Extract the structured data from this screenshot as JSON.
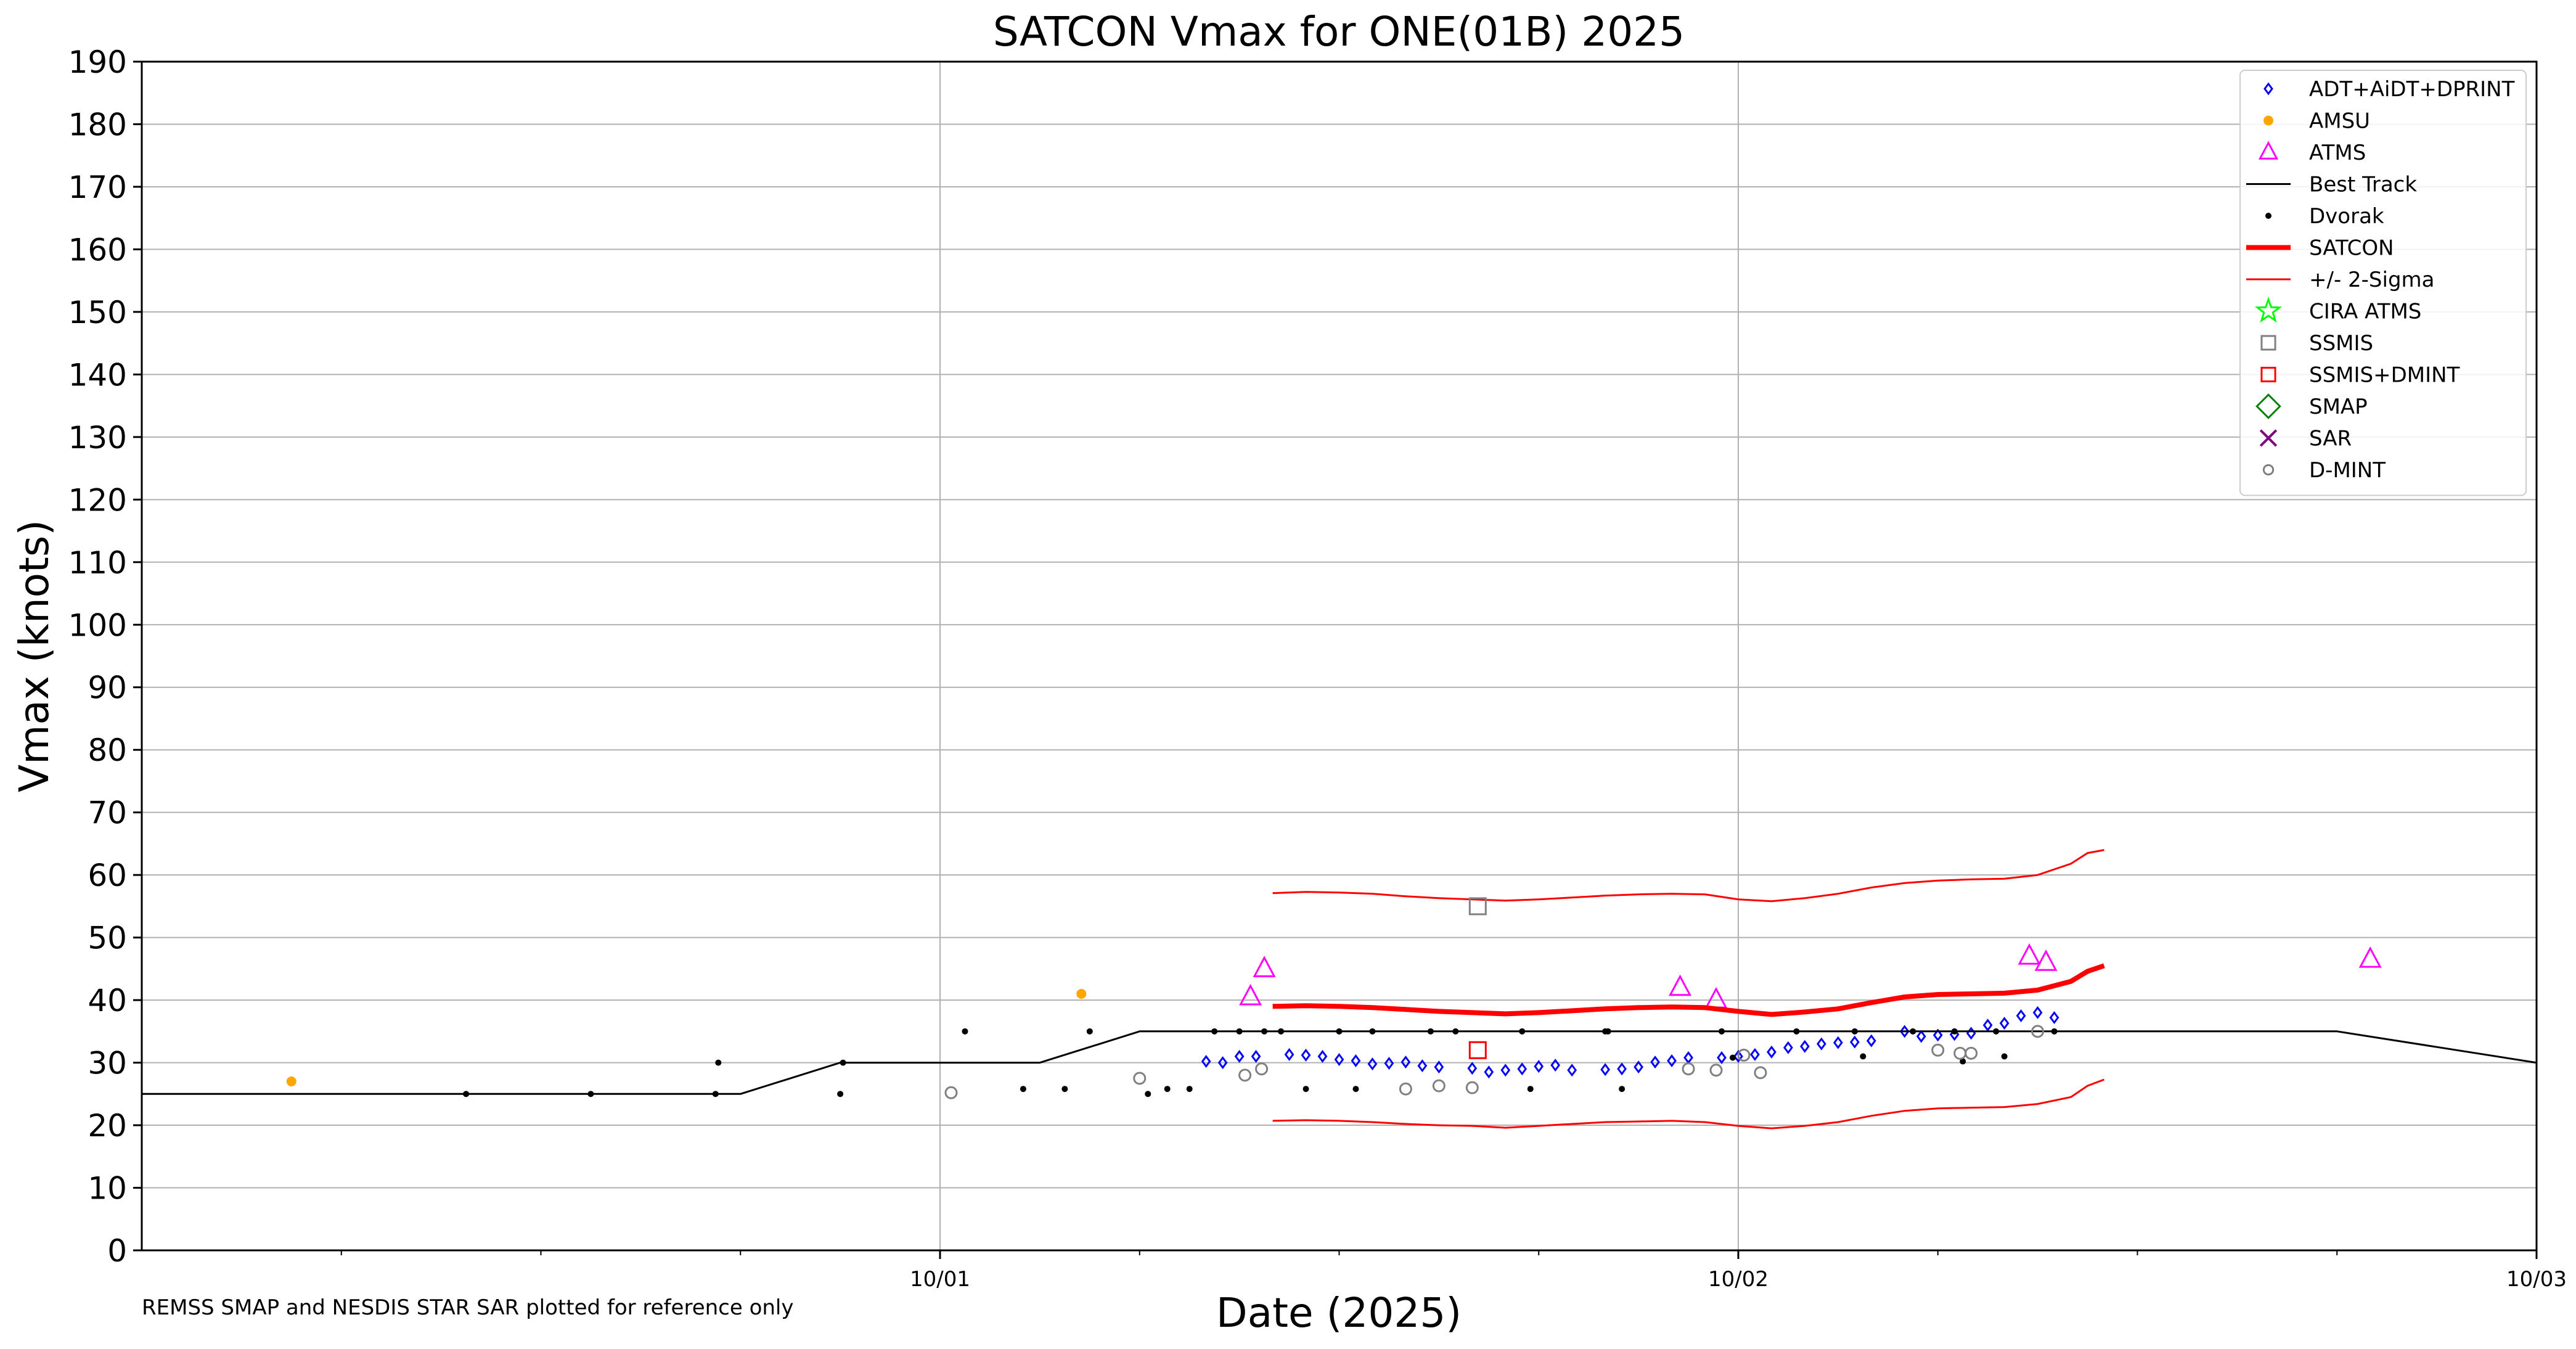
{
  "chart_data": {
    "type": "scatter",
    "title": "SATCON Vmax for ONE(01B) 2025",
    "xlabel": "Date (2025)",
    "ylabel": "Vmax (knots)",
    "footnote": "REMSS SMAP and NESDIS STAR SAR plotted for reference only",
    "xlim": [
      "2025-09-30T00:00",
      "2025-10-03T00:00"
    ],
    "ylim": [
      0,
      190
    ],
    "y_ticks": [
      0,
      10,
      20,
      30,
      40,
      50,
      60,
      70,
      80,
      90,
      100,
      110,
      120,
      130,
      140,
      150,
      160,
      170,
      180,
      190
    ],
    "x_ticks": [
      {
        "value": "2025-10-01T00:00",
        "label": "10/01"
      },
      {
        "value": "2025-10-02T00:00",
        "label": "10/02"
      },
      {
        "value": "2025-10-03T00:00",
        "label": "10/03"
      }
    ],
    "x_minor_ticks": [
      "2025-09-30T06:00",
      "2025-09-30T12:00",
      "2025-09-30T18:00",
      "2025-10-01T06:00",
      "2025-10-01T12:00",
      "2025-10-01T18:00",
      "2025-10-02T06:00",
      "2025-10-02T12:00",
      "2025-10-02T18:00"
    ],
    "grid": true,
    "legend_position": "top-right",
    "series": [
      {
        "name": "ADT+AiDT+DPRINT",
        "style": "open-diamond",
        "color": "#0000ff",
        "x": [
          "2025-10-01T08:00",
          "2025-10-01T08:30",
          "2025-10-01T09:00",
          "2025-10-01T09:30",
          "2025-10-01T10:30",
          "2025-10-01T11:00",
          "2025-10-01T11:30",
          "2025-10-01T12:00",
          "2025-10-01T12:30",
          "2025-10-01T13:00",
          "2025-10-01T13:30",
          "2025-10-01T14:00",
          "2025-10-01T14:30",
          "2025-10-01T15:00",
          "2025-10-01T16:00",
          "2025-10-01T16:30",
          "2025-10-01T17:00",
          "2025-10-01T17:30",
          "2025-10-01T18:00",
          "2025-10-01T18:30",
          "2025-10-01T19:00",
          "2025-10-01T20:00",
          "2025-10-01T20:30",
          "2025-10-01T21:00",
          "2025-10-01T21:30",
          "2025-10-01T22:00",
          "2025-10-01T22:30",
          "2025-10-01T23:30",
          "2025-10-02T00:00",
          "2025-10-02T00:30",
          "2025-10-02T01:00",
          "2025-10-02T01:30",
          "2025-10-02T02:00",
          "2025-10-02T02:30",
          "2025-10-02T03:00",
          "2025-10-02T03:30",
          "2025-10-02T04:00",
          "2025-10-02T05:00",
          "2025-10-02T05:30",
          "2025-10-02T06:00",
          "2025-10-02T06:30",
          "2025-10-02T07:00",
          "2025-10-02T07:30",
          "2025-10-02T08:00",
          "2025-10-02T08:30",
          "2025-10-02T09:00",
          "2025-10-02T09:30"
        ],
        "y": [
          30.2,
          30.0,
          31.0,
          31.0,
          31.3,
          31.2,
          31.0,
          30.5,
          30.3,
          29.8,
          29.9,
          30.1,
          29.5,
          29.3,
          29.1,
          28.5,
          28.8,
          29.0,
          29.4,
          29.6,
          28.8,
          28.9,
          29.0,
          29.3,
          30.1,
          30.3,
          30.8,
          30.8,
          31.0,
          31.3,
          31.7,
          32.4,
          32.6,
          33.0,
          33.2,
          33.3,
          33.5,
          35.0,
          34.2,
          34.4,
          34.5,
          34.7,
          36.0,
          36.3,
          37.5,
          38.0,
          37.2
        ]
      },
      {
        "name": "AMSU",
        "style": "filled-dot",
        "color": "#ffa500",
        "x": [
          "2025-09-30T04:30",
          "2025-10-01T04:15"
        ],
        "y": [
          27,
          41
        ]
      },
      {
        "name": "ATMS",
        "style": "open-triangle",
        "color": "#ff00ff",
        "x": [
          "2025-10-01T09:20",
          "2025-10-01T09:45",
          "2025-10-01T22:15",
          "2025-10-01T23:20",
          "2025-10-02T08:45",
          "2025-10-02T09:15",
          "2025-10-02T19:00"
        ],
        "y": [
          40.5,
          45,
          42,
          40,
          47,
          46,
          46.5
        ]
      },
      {
        "name": "Best Track",
        "style": "line",
        "color": "#000000",
        "x": [
          "2025-09-30T00:00",
          "2025-09-30T15:00",
          "2025-09-30T18:00",
          "2025-09-30T21:00",
          "2025-10-01T00:00",
          "2025-10-01T03:00",
          "2025-10-01T06:00",
          "2025-10-01T09:00",
          "2025-10-01T12:00",
          "2025-10-02T12:00",
          "2025-10-02T18:00",
          "2025-10-02T21:00",
          "2025-10-03T00:00"
        ],
        "y": [
          25,
          25,
          25,
          30,
          30,
          30,
          35,
          35,
          35,
          35,
          35,
          32.5,
          30
        ]
      },
      {
        "name": "Dvorak",
        "style": "small-dot",
        "color": "#000000",
        "x": [
          "2025-09-30T09:45",
          "2025-09-30T13:30",
          "2025-09-30T17:15",
          "2025-09-30T17:20",
          "2025-09-30T21:00",
          "2025-09-30T21:05",
          "2025-10-01T00:45",
          "2025-10-01T04:30",
          "2025-10-01T08:15",
          "2025-10-01T09:00",
          "2025-10-01T09:45",
          "2025-10-01T10:15",
          "2025-10-01T12:00",
          "2025-10-01T13:00",
          "2025-10-01T14:45",
          "2025-10-01T15:30",
          "2025-10-01T17:30",
          "2025-10-01T20:00",
          "2025-10-01T20:05",
          "2025-10-01T23:30",
          "2025-10-02T01:45",
          "2025-10-02T03:30",
          "2025-10-02T05:15",
          "2025-10-02T06:30",
          "2025-10-02T07:45",
          "2025-10-02T09:30",
          "2025-10-01T02:30",
          "2025-10-01T03:45",
          "2025-10-01T06:15",
          "2025-10-01T06:50",
          "2025-10-01T07:30",
          "2025-10-01T11:00",
          "2025-10-01T12:30",
          "2025-10-01T17:45",
          "2025-10-01T20:30",
          "2025-10-01T23:50",
          "2025-10-02T03:45",
          "2025-10-02T06:45",
          "2025-10-02T08:00"
        ],
        "y": [
          25,
          25,
          25,
          30,
          25,
          30,
          35,
          35,
          35,
          35,
          35,
          35,
          35,
          35,
          35,
          35,
          35,
          35,
          35,
          35,
          35,
          35,
          35,
          35,
          35,
          35,
          25.8,
          25.8,
          25,
          25.8,
          25.8,
          25.8,
          25.8,
          25.8,
          25.8,
          30.8,
          31,
          30.2,
          31
        ]
      },
      {
        "name": "SATCON",
        "style": "thick-line",
        "color": "#ff0000",
        "x": [
          "2025-10-01T10:00",
          "2025-10-01T11:00",
          "2025-10-01T12:00",
          "2025-10-01T13:00",
          "2025-10-01T14:00",
          "2025-10-01T15:00",
          "2025-10-01T16:00",
          "2025-10-01T17:00",
          "2025-10-01T18:00",
          "2025-10-01T19:00",
          "2025-10-01T20:00",
          "2025-10-01T21:00",
          "2025-10-01T22:00",
          "2025-10-01T23:00",
          "2025-10-02T00:00",
          "2025-10-02T01:00",
          "2025-10-02T02:00",
          "2025-10-02T03:00",
          "2025-10-02T04:00",
          "2025-10-02T05:00",
          "2025-10-02T06:00",
          "2025-10-02T07:00",
          "2025-10-02T08:00",
          "2025-10-02T09:00",
          "2025-10-02T10:00",
          "2025-10-02T10:30",
          "2025-10-02T11:00"
        ],
        "y": [
          39,
          39.1,
          39,
          38.8,
          38.5,
          38.2,
          38,
          37.8,
          38,
          38.3,
          38.6,
          38.8,
          38.9,
          38.8,
          38.2,
          37.7,
          38.1,
          38.6,
          39.6,
          40.5,
          40.9,
          41,
          41.1,
          41.6,
          43,
          44.6,
          45.5
        ]
      },
      {
        "name": "+/- 2-Sigma",
        "style": "thin-line",
        "color": "#ff0000",
        "upper_x": [
          "2025-10-01T10:00",
          "2025-10-01T11:00",
          "2025-10-01T12:00",
          "2025-10-01T13:00",
          "2025-10-01T14:00",
          "2025-10-01T15:00",
          "2025-10-01T16:00",
          "2025-10-01T17:00",
          "2025-10-01T18:00",
          "2025-10-01T19:00",
          "2025-10-01T20:00",
          "2025-10-01T21:00",
          "2025-10-01T22:00",
          "2025-10-01T23:00",
          "2025-10-02T00:00",
          "2025-10-02T01:00",
          "2025-10-02T02:00",
          "2025-10-02T03:00",
          "2025-10-02T04:00",
          "2025-10-02T05:00",
          "2025-10-02T06:00",
          "2025-10-02T07:00",
          "2025-10-02T08:00",
          "2025-10-02T09:00",
          "2025-10-02T10:00",
          "2025-10-02T10:30",
          "2025-10-02T11:00"
        ],
        "upper_y": [
          57.1,
          57.3,
          57.2,
          57,
          56.6,
          56.3,
          56.1,
          55.9,
          56.1,
          56.4,
          56.7,
          56.9,
          57,
          56.9,
          56.1,
          55.8,
          56.3,
          57,
          58,
          58.7,
          59.1,
          59.3,
          59.4,
          60,
          61.8,
          63.5,
          64
        ],
        "lower_x": [
          "2025-10-01T10:00",
          "2025-10-01T11:00",
          "2025-10-01T12:00",
          "2025-10-01T13:00",
          "2025-10-01T14:00",
          "2025-10-01T15:00",
          "2025-10-01T16:00",
          "2025-10-01T17:00",
          "2025-10-01T18:00",
          "2025-10-01T19:00",
          "2025-10-01T20:00",
          "2025-10-01T21:00",
          "2025-10-01T22:00",
          "2025-10-01T23:00",
          "2025-10-02T00:00",
          "2025-10-02T01:00",
          "2025-10-02T02:00",
          "2025-10-02T03:00",
          "2025-10-02T04:00",
          "2025-10-02T05:00",
          "2025-10-02T06:00",
          "2025-10-02T07:00",
          "2025-10-02T08:00",
          "2025-10-02T09:00",
          "2025-10-02T10:00",
          "2025-10-02T10:30",
          "2025-10-02T11:00"
        ],
        "lower_y": [
          20.7,
          20.8,
          20.7,
          20.5,
          20.2,
          20,
          19.9,
          19.6,
          19.9,
          20.2,
          20.5,
          20.6,
          20.7,
          20.5,
          19.9,
          19.5,
          19.9,
          20.5,
          21.5,
          22.3,
          22.7,
          22.8,
          22.9,
          23.4,
          24.5,
          26.3,
          27.3
        ]
      },
      {
        "name": "CIRA ATMS",
        "style": "open-star",
        "color": "#00ff00",
        "x": [],
        "y": []
      },
      {
        "name": "SSMIS",
        "style": "open-square",
        "color": "#808080",
        "x": [
          "2025-10-01T16:10"
        ],
        "y": [
          55
        ]
      },
      {
        "name": "SSMIS+DMINT",
        "style": "open-square",
        "color": "#ff0000",
        "x": [
          "2025-10-01T16:10"
        ],
        "y": [
          32
        ]
      },
      {
        "name": "SMAP",
        "style": "open-big-diamond",
        "color": "#008000",
        "x": [],
        "y": []
      },
      {
        "name": "SAR",
        "style": "x-mark",
        "color": "#800080",
        "x": [],
        "y": []
      },
      {
        "name": "D-MINT",
        "style": "open-circle",
        "color": "#808080",
        "x": [
          "2025-10-01T00:20",
          "2025-10-01T06:00",
          "2025-10-01T09:10",
          "2025-10-01T09:40",
          "2025-10-01T14:00",
          "2025-10-01T15:00",
          "2025-10-01T16:00",
          "2025-10-01T22:30",
          "2025-10-01T23:20",
          "2025-10-02T00:10",
          "2025-10-02T00:40",
          "2025-10-02T06:00",
          "2025-10-02T06:40",
          "2025-10-02T07:00",
          "2025-10-02T09:00"
        ],
        "y": [
          25.2,
          27.5,
          28,
          29,
          25.8,
          26.3,
          26,
          29,
          28.8,
          31.2,
          28.4,
          32,
          31.5,
          31.5,
          35
        ]
      }
    ]
  }
}
